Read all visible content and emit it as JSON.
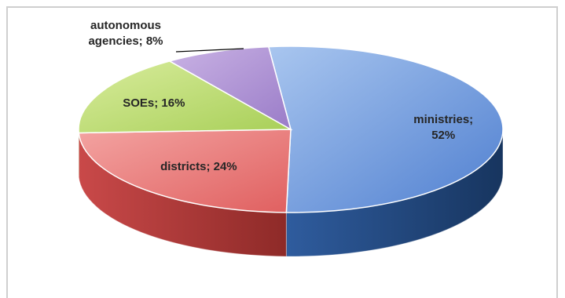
{
  "chart_data": {
    "type": "pie",
    "style": "3d",
    "title": "",
    "slices": [
      {
        "label": "ministries",
        "value": 52,
        "color": "#4f81bd",
        "label_lines": [
          "ministries;",
          "52%"
        ]
      },
      {
        "label": "districts",
        "value": 24,
        "color": "#c0504d",
        "label_lines": [
          "districts; 24%"
        ]
      },
      {
        "label": "SOEs",
        "value": 16,
        "color": "#9bbb59",
        "label_lines": [
          "SOEs; 16%"
        ]
      },
      {
        "label": "autonomous agencies",
        "value": 8,
        "color": "#8064a2",
        "label_lines": [
          "autonomous",
          "agencies; 8%"
        ]
      }
    ],
    "legend": "none"
  }
}
